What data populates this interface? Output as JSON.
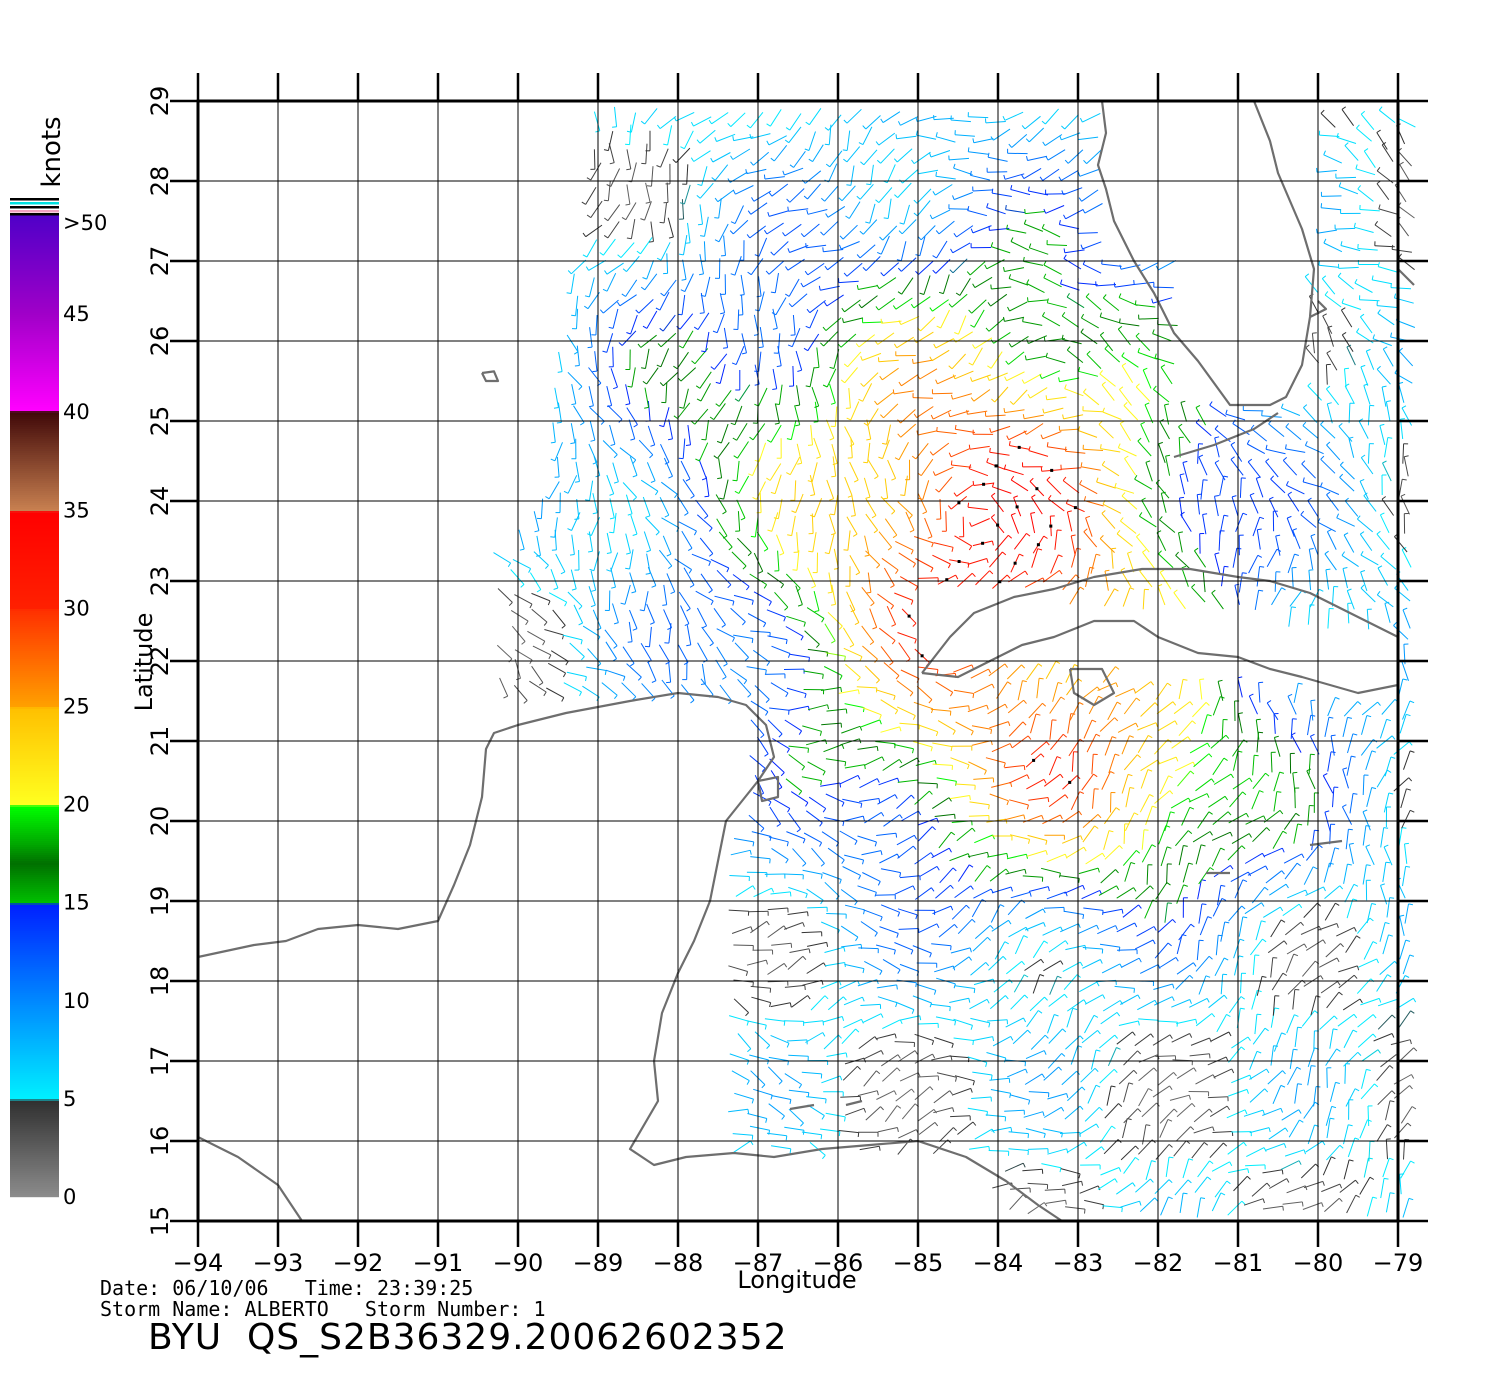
{
  "map": {
    "lon_range": [
      -94,
      -79
    ],
    "lat_range": [
      15,
      29
    ],
    "xlabel": "Longitude",
    "ylabel": "Latitude",
    "lon_ticks": [
      "−94",
      "−93",
      "−92",
      "−91",
      "−90",
      "−89",
      "−88",
      "−87",
      "−86",
      "−85",
      "−84",
      "−83",
      "−82",
      "−81",
      "−80",
      "−79"
    ],
    "lat_ticks": [
      "15",
      "16",
      "17",
      "18",
      "19",
      "20",
      "21",
      "22",
      "23",
      "24",
      "25",
      "26",
      "27",
      "28",
      "29"
    ],
    "grid": true,
    "coast_color": "#6e6e6e",
    "storm_center": [
      -84.2,
      23.6
    ]
  },
  "legend": {
    "title": "knots",
    "labels": [
      ">50",
      "45",
      "40",
      "35",
      "30",
      "25",
      "20",
      "15",
      "10",
      "5",
      "0"
    ]
  },
  "footer": {
    "date_label": "Date:",
    "date": "06/10/06",
    "time_label": "Time:",
    "time": "23:39:25",
    "storm_name_label": "Storm Name:",
    "storm_name": "ALBERTO",
    "storm_number_label": "Storm Number:",
    "storm_number": "1",
    "file_id": "BYU  QS_S2B36329.20062602352"
  }
}
